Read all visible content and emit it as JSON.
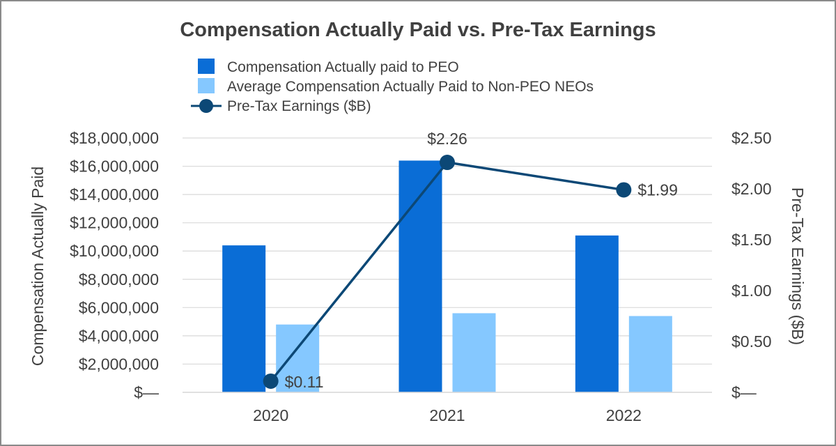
{
  "colors": {
    "peo": "#0a6dd6",
    "non_peo": "#85c8ff",
    "earnings": "#0c4876",
    "text": "#404040",
    "grid": "#d9d9d9"
  },
  "chart_data": {
    "type": "bar",
    "title": "Compensation Actually Paid vs. Pre-Tax Earnings",
    "categories": [
      "2020",
      "2021",
      "2022"
    ],
    "ylabel": "Compensation Actually Paid",
    "y2label": "Pre-Tax Earnings ($B)",
    "ylim": [
      0,
      18000000
    ],
    "y2lim": [
      0,
      2.5
    ],
    "yticks": [
      0,
      2000000,
      4000000,
      6000000,
      8000000,
      10000000,
      12000000,
      14000000,
      16000000,
      18000000
    ],
    "yticklabels": [
      "$—",
      "$2,000,000",
      "$4,000,000",
      "$6,000,000",
      "$8,000,000",
      "$10,000,000",
      "$12,000,000",
      "$14,000,000",
      "$16,000,000",
      "$18,000,000"
    ],
    "y2ticks": [
      0,
      0.5,
      1.0,
      1.5,
      2.0,
      2.5
    ],
    "y2ticklabels": [
      "$—",
      "$0.50",
      "$1.00",
      "$1.50",
      "$2.00",
      "$2.50"
    ],
    "grid": true,
    "legend_position": "top",
    "series": [
      {
        "name": "Compensation Actually paid to PEO",
        "kind": "bar",
        "axis": "left",
        "values": [
          10400000,
          16400000,
          11100000
        ]
      },
      {
        "name": "Average Compensation Actually Paid to Non-PEO NEOs",
        "kind": "bar",
        "axis": "left",
        "values": [
          4800000,
          5600000,
          5400000
        ]
      },
      {
        "name": "Pre-Tax Earnings ($B)",
        "kind": "line",
        "axis": "right",
        "values": [
          0.11,
          2.26,
          1.99
        ],
        "labels": [
          "$0.11",
          "$2.26",
          "$1.99"
        ]
      }
    ]
  }
}
